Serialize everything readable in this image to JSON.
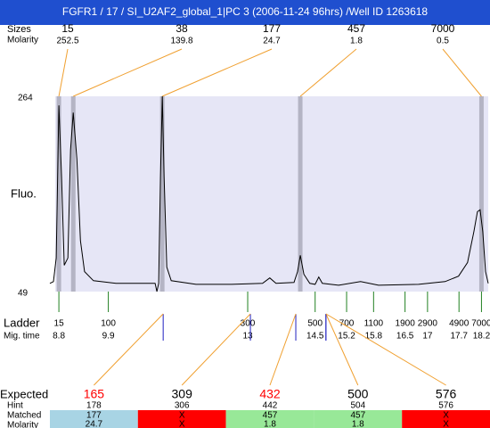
{
  "header": {
    "title": "FGFR1 / 17 / SI_U2AF2_global_1|PC 3 (2006-11-24 96hrs) /Well ID 1263618"
  },
  "chart_data": {
    "type": "electropherogram",
    "y_label": "Fluo.",
    "ylim": [
      49,
      264
    ],
    "yticks": [
      49,
      264
    ],
    "xlim": [
      8.6,
      18.35
    ],
    "plot_color": "#e6e6f6",
    "trace": {
      "color": "#000000",
      "x": [
        8.6,
        8.68,
        8.74,
        8.8,
        8.86,
        8.92,
        9.0,
        9.06,
        9.12,
        9.2,
        9.28,
        9.37,
        9.57,
        10.07,
        10.66,
        10.94,
        10.98,
        11.02,
        11.06,
        11.1,
        11.14,
        11.2,
        11.3,
        11.85,
        12.64,
        13.33,
        13.49,
        13.63,
        14.03,
        14.11,
        14.17,
        14.25,
        14.38,
        14.5,
        14.58,
        14.66,
        15.02,
        15.51,
        15.91,
        16.8,
        17.39,
        17.69,
        17.89,
        18.03,
        18.11,
        18.17,
        18.23,
        18.29,
        18.35
      ],
      "values": [
        58,
        60,
        86,
        254,
        175,
        78,
        86,
        205,
        246,
        195,
        105,
        71,
        61,
        58,
        58,
        58,
        49,
        58,
        175,
        264,
        175,
        76,
        61,
        57,
        57,
        58,
        64,
        58,
        59,
        71,
        89,
        68,
        58,
        57,
        65,
        58,
        56,
        60,
        56,
        57,
        60,
        66,
        81,
        115,
        137,
        139,
        115,
        71,
        58
      ]
    },
    "peaks": {
      "size_label": "Sizes",
      "molarity_label": "Molarity",
      "sizes": [
        15,
        38,
        177,
        457,
        7000
      ],
      "molarity": [
        252.5,
        139.8,
        24.7,
        1.8,
        0.5
      ],
      "mig_time": [
        8.8,
        9.12,
        11.1,
        14.17,
        18.2
      ],
      "band_color": "#b4b4c4",
      "line_color": "#f0a030"
    },
    "ladder": {
      "label": "Ladder",
      "time_label": "Mig. time",
      "sizes": [
        15,
        100,
        300,
        500,
        700,
        1100,
        1900,
        2900,
        4900,
        7000
      ],
      "mig_time": [
        8.8,
        9.9,
        13,
        14.5,
        15.2,
        15.8,
        16.5,
        17,
        17.7,
        18.2
      ],
      "color": "#208020"
    },
    "expected": {
      "label": "Expected",
      "hint_label": "Hint",
      "matched_label": "Matched",
      "molarity_label": "Molarity",
      "values": [
        165,
        309,
        432,
        500,
        576
      ],
      "text_colors": [
        "#ff0000",
        "#000000",
        "#ff0000",
        "#000000",
        "#000000"
      ],
      "hint": [
        178,
        306,
        442,
        504,
        576
      ],
      "matched": [
        177,
        "X",
        457,
        457,
        "X"
      ],
      "molarity": [
        24.7,
        "X",
        1.8,
        1.8,
        "X"
      ],
      "cell_colors": [
        "#a8d4e4",
        "#ff0000",
        "#98e898",
        "#98e898",
        "#ff0000"
      ],
      "mig_time": [
        11.12,
        13.06,
        14.07,
        14.74,
        14.74
      ],
      "marker_color": "#2020c0"
    }
  }
}
